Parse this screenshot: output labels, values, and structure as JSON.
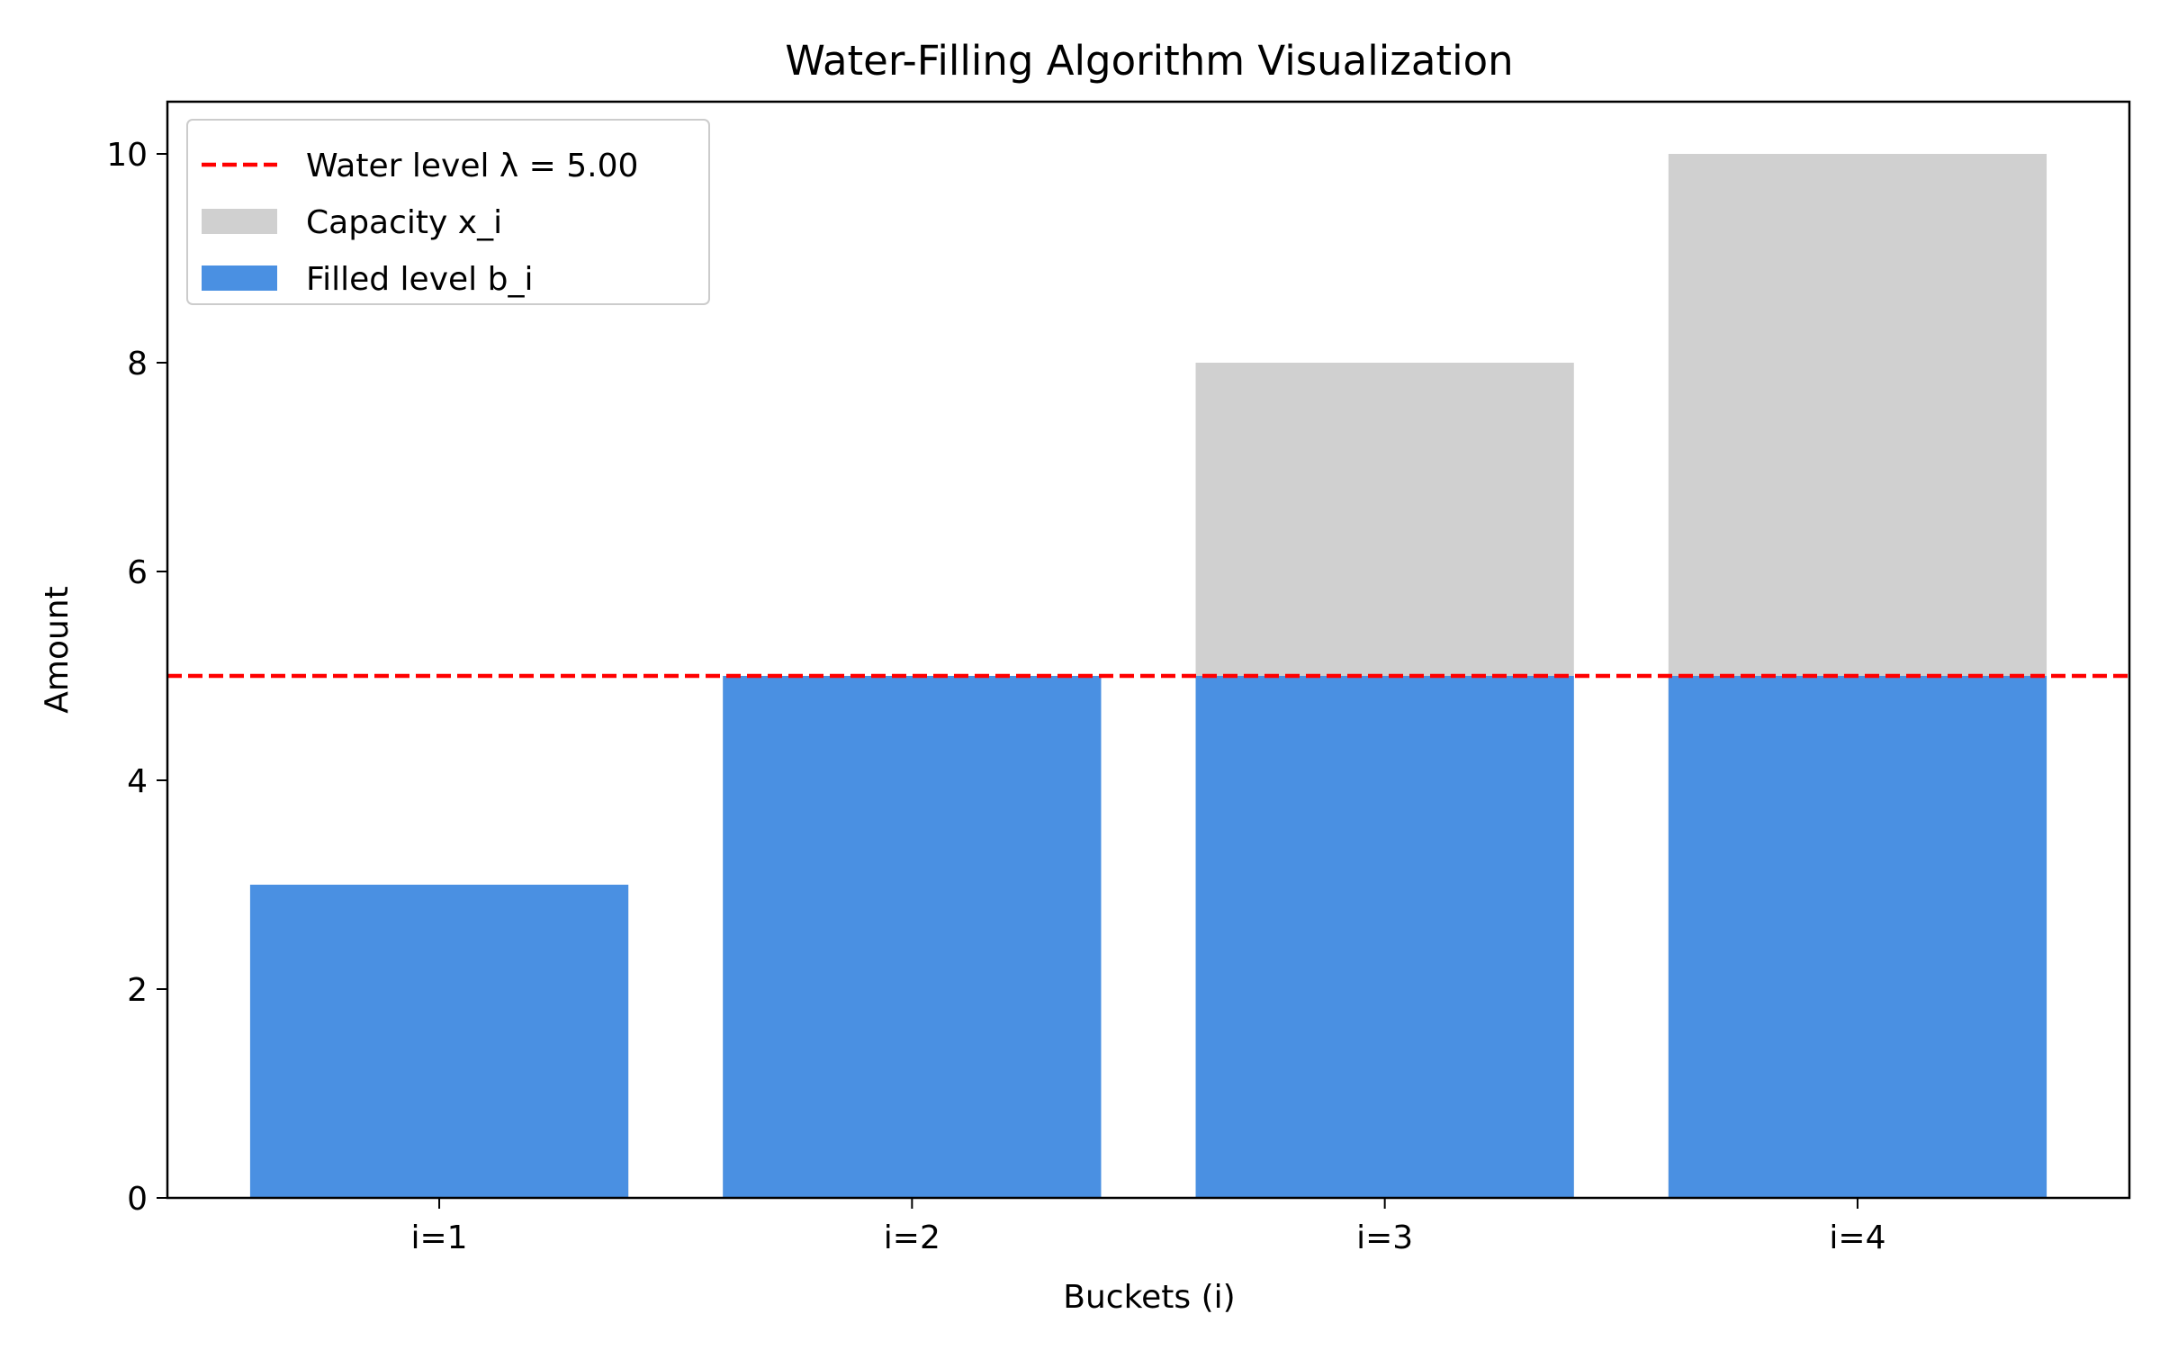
{
  "chart_data": {
    "type": "bar",
    "title": "Water-Filling Algorithm Visualization",
    "xlabel": "Buckets (i)",
    "ylabel": "Amount",
    "categories": [
      "i=1",
      "i=2",
      "i=3",
      "i=4"
    ],
    "series": [
      {
        "name": "Capacity x_i",
        "values": [
          3,
          5,
          8,
          10
        ],
        "color": "#d0d0d0"
      },
      {
        "name": "Filled level b_i",
        "values": [
          3,
          5,
          5,
          5
        ],
        "color": "#4a90e2"
      }
    ],
    "reference_lines": [
      {
        "name": "Water level λ = 5.00",
        "value": 5.0,
        "color": "#ff0000",
        "style": "dashed"
      }
    ],
    "ylim": [
      0,
      10.5
    ],
    "yticks": [
      0,
      2,
      4,
      6,
      8,
      10
    ],
    "grid": false,
    "legend": {
      "position": "top-left",
      "order": [
        "Water level λ = 5.00",
        "Capacity x_i",
        "Filled level b_i"
      ]
    }
  }
}
